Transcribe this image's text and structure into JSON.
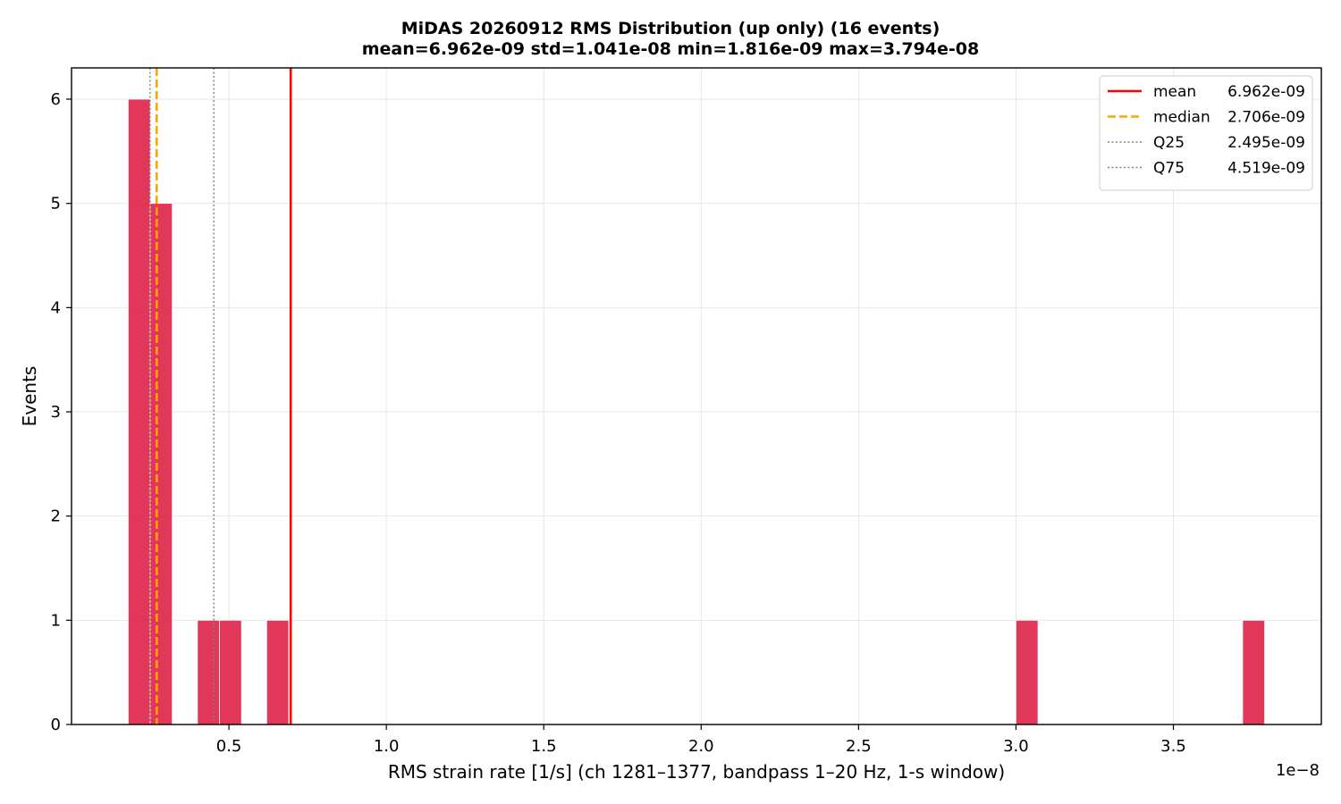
{
  "chart_data": {
    "type": "bar",
    "title": "MiDAS 20260912  RMS Distribution  (up only)  (16 events)",
    "subtitle": "mean=6.962e-09  std=1.041e-08  min=1.816e-09  max=3.794e-08",
    "xlabel": "RMS strain rate [1/s]  (ch 1281–1377, bandpass 1–20 Hz, 1-s window)",
    "ylabel": "Events",
    "x_offset_label": "1e−8",
    "x_multiplier": 1e-08,
    "xlim": [
      0.0,
      3.97
    ],
    "ylim": [
      0,
      6.3
    ],
    "xticks": [
      0.5,
      1.0,
      1.5,
      2.0,
      2.5,
      3.0,
      3.5
    ],
    "xtick_labels": [
      "0.5",
      "1.0",
      "1.5",
      "2.0",
      "2.5",
      "3.0",
      "3.5"
    ],
    "yticks": [
      0,
      1,
      2,
      3,
      4,
      5,
      6
    ],
    "ytick_labels": [
      "0",
      "1",
      "2",
      "3",
      "4",
      "5",
      "6"
    ],
    "grid": true,
    "bar_color": "#dc143c",
    "bins": [
      {
        "x0": 0.18,
        "x1": 0.25,
        "count": 6
      },
      {
        "x0": 0.25,
        "x1": 0.32,
        "count": 5
      },
      {
        "x0": 0.4,
        "x1": 0.47,
        "count": 1
      },
      {
        "x0": 0.47,
        "x1": 0.54,
        "count": 1
      },
      {
        "x0": 0.62,
        "x1": 0.69,
        "count": 1
      },
      {
        "x0": 3.0,
        "x1": 3.07,
        "count": 1
      },
      {
        "x0": 3.72,
        "x1": 3.79,
        "count": 1
      }
    ],
    "reference_lines": [
      {
        "name": "mean",
        "value_label": "6.962e-09",
        "x": 0.6962,
        "color": "#ff0000",
        "style": "solid"
      },
      {
        "name": "median",
        "value_label": "2.706e-09",
        "x": 0.2706,
        "color": "#ffa500",
        "style": "dashed"
      },
      {
        "name": "Q25",
        "value_label": "2.495e-09",
        "x": 0.2495,
        "color": "#808080",
        "style": "dotted"
      },
      {
        "name": "Q75",
        "value_label": "4.519e-09",
        "x": 0.4519,
        "color": "#808080",
        "style": "dotted"
      }
    ],
    "legend_placement": "top-right"
  }
}
